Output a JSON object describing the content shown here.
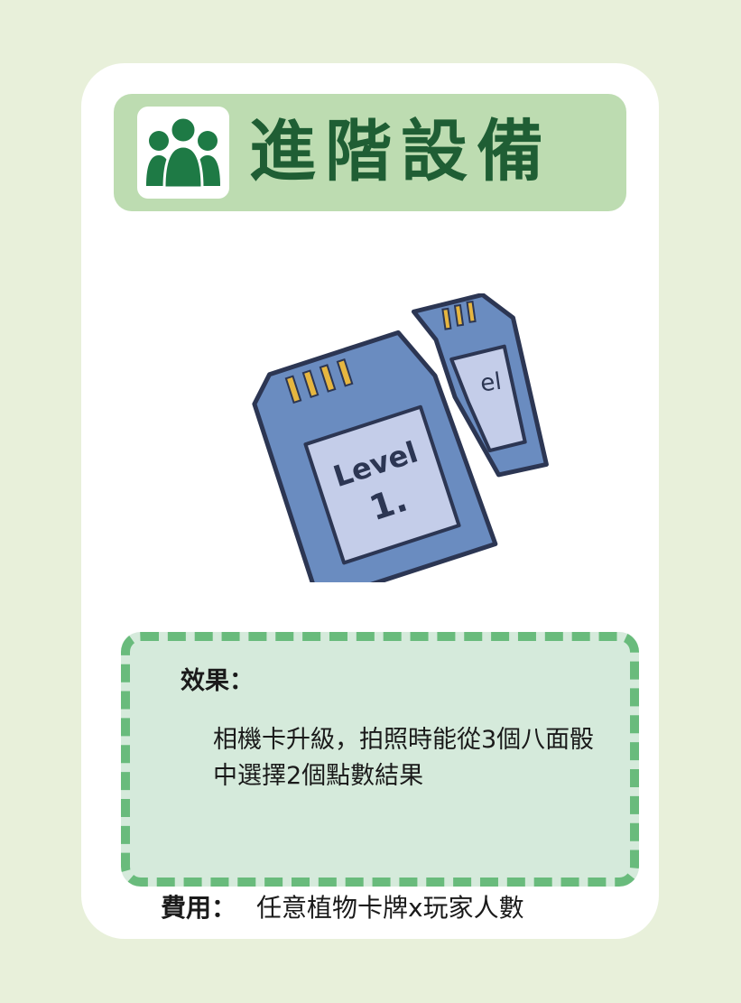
{
  "card": {
    "title": "進階設備",
    "icon": "people-group-icon",
    "illustration": {
      "icon": "broken-memory-card-icon",
      "card_text_line1": "Level",
      "card_text_line2": "1.",
      "fragment_text": "el"
    },
    "effect": {
      "label": "效果：",
      "text": "相機卡升級，拍照時能從3個八面骰中選擇2個點數結果"
    },
    "cost": {
      "label": "費用：",
      "value": "任意植物卡牌x玩家人數"
    }
  },
  "colors": {
    "background": "#e8f0da",
    "title_bar": "#bddcb1",
    "title_text": "#1f5e34",
    "effect_fill": "#d5eadb",
    "effect_border": "#69bb7c",
    "memory_card": "#6a8cc0"
  }
}
